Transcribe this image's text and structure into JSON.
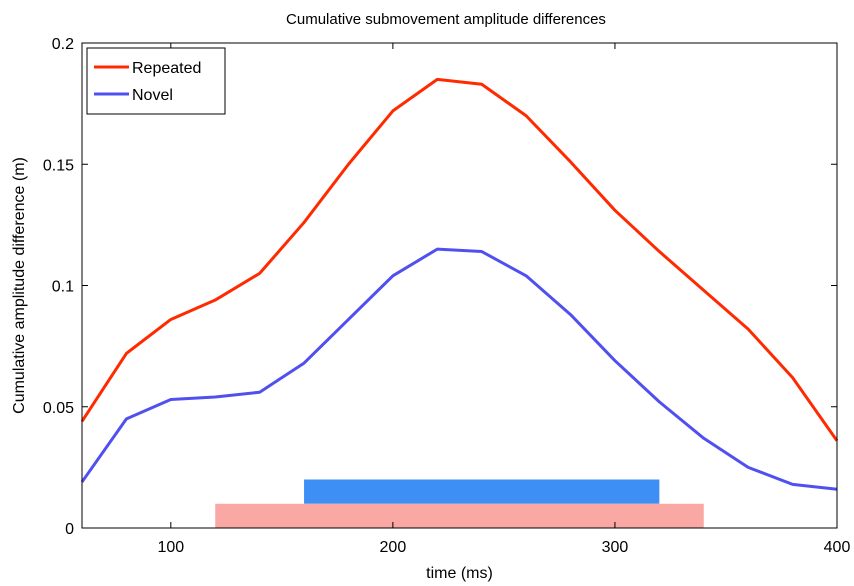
{
  "chart_data": {
    "type": "line",
    "title": "Cumulative submovement amplitude differences",
    "xlabel": "time (ms)",
    "ylabel": "Cumulative amplitude difference (m)",
    "xlim": [
      60,
      400
    ],
    "ylim": [
      0,
      0.2
    ],
    "xticks": [
      100,
      200,
      300,
      400
    ],
    "yticks": [
      0,
      0.05,
      0.1,
      0.15,
      0.2
    ],
    "xtick_labels": [
      "100",
      "200",
      "300",
      "400"
    ],
    "ytick_labels": [
      "0",
      "0.05",
      "0.1",
      "0.15",
      "0.2"
    ],
    "grid": false,
    "legend_position": "top-left",
    "x": [
      60,
      80,
      100,
      120,
      140,
      160,
      180,
      200,
      220,
      240,
      260,
      280,
      300,
      320,
      340,
      360,
      380,
      400
    ],
    "series": [
      {
        "name": "Repeated",
        "color": "#ff2a00",
        "values": [
          0.044,
          0.072,
          0.086,
          0.094,
          0.105,
          0.126,
          0.15,
          0.172,
          0.185,
          0.183,
          0.17,
          0.151,
          0.131,
          0.114,
          0.098,
          0.082,
          0.062,
          0.036
        ]
      },
      {
        "name": "Novel",
        "color": "#5050f0",
        "values": [
          0.019,
          0.045,
          0.053,
          0.054,
          0.056,
          0.068,
          0.086,
          0.104,
          0.115,
          0.114,
          0.104,
          0.088,
          0.069,
          0.052,
          0.037,
          0.025,
          0.018,
          0.016
        ]
      }
    ],
    "significance_bars": [
      {
        "series": "Novel",
        "color": "#3d8ef5",
        "x_start": 160,
        "x_end": 320,
        "y_bottom": 0.01,
        "y_top": 0.02
      },
      {
        "series": "Repeated",
        "color": "#f9a8a4",
        "x_start": 120,
        "x_end": 340,
        "y_bottom": 0.0,
        "y_top": 0.01
      }
    ]
  }
}
